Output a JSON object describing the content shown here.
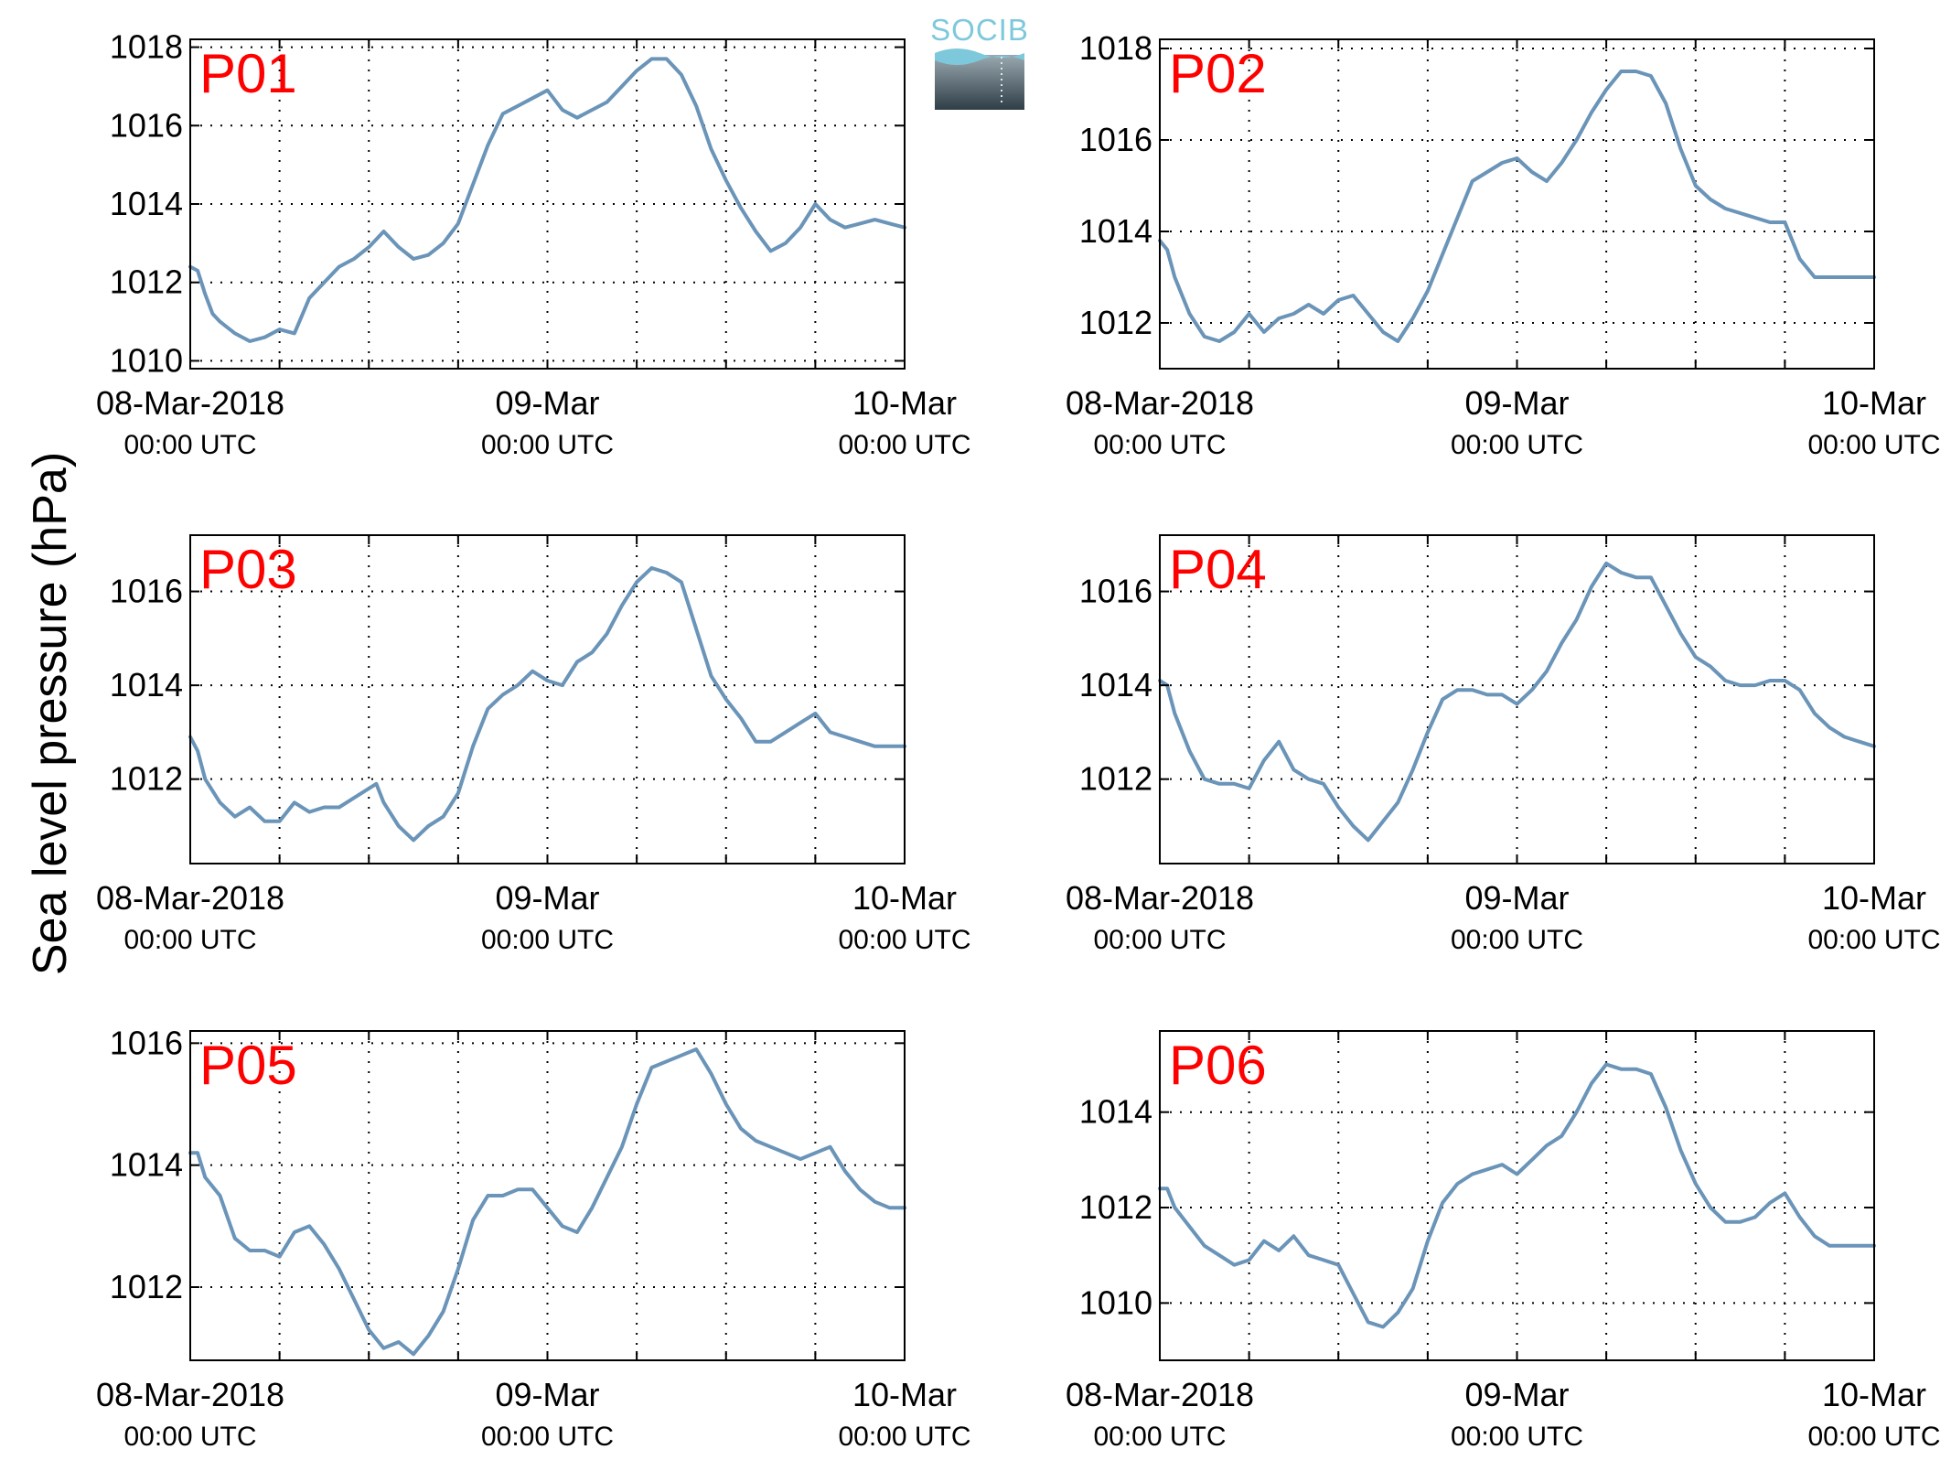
{
  "figure": {
    "ylabel": "Sea level pressure (hPa)",
    "logo_text": "SOCIB"
  },
  "colors": {
    "series": "#6a94b8",
    "panel_label": "#ff0000",
    "logo_text": "#7ec8dc"
  },
  "chart_data": [
    {
      "type": "line",
      "panel_label": "P01",
      "ylabel": "Sea level pressure (hPa)",
      "xlim": [
        0,
        48
      ],
      "ylim": [
        1009.8,
        1018.2
      ],
      "yticks": [
        1010,
        1012,
        1014,
        1016,
        1018
      ],
      "xticks": [
        0,
        6,
        12,
        18,
        24,
        30,
        36,
        42,
        48
      ],
      "xtick_labels": [
        {
          "pos": 0,
          "date": "08-Mar-2018",
          "time": "00:00 UTC"
        },
        {
          "pos": 24,
          "date": "09-Mar",
          "time": "00:00 UTC"
        },
        {
          "pos": 48,
          "date": "10-Mar",
          "time": "00:00 UTC"
        }
      ],
      "grid": true,
      "x_unit": "hours since 08-Mar-2018 00:00 UTC",
      "series": [
        {
          "x": [
            0,
            0.5,
            1,
            1.5,
            2,
            3,
            4,
            5,
            6,
            7,
            8,
            9,
            10,
            11,
            12,
            12.5,
            13,
            14,
            15,
            16,
            17,
            18,
            19,
            20,
            21,
            22,
            23,
            24,
            25,
            26,
            27,
            28,
            29,
            30,
            31,
            32,
            33,
            34,
            35,
            36,
            37,
            38,
            39,
            40,
            41,
            42,
            43,
            44,
            45,
            46,
            47,
            48
          ],
          "y": [
            1012.4,
            1012.3,
            1011.7,
            1011.2,
            1011.0,
            1010.7,
            1010.5,
            1010.6,
            1010.8,
            1010.7,
            1011.6,
            1012.0,
            1012.4,
            1012.6,
            1012.9,
            1013.1,
            1013.3,
            1012.9,
            1012.6,
            1012.7,
            1013.0,
            1013.5,
            1014.5,
            1015.5,
            1016.3,
            1016.5,
            1016.7,
            1016.9,
            1016.4,
            1016.2,
            1016.4,
            1016.6,
            1017.0,
            1017.4,
            1017.7,
            1017.7,
            1017.3,
            1016.5,
            1015.4,
            1014.6,
            1013.9,
            1013.3,
            1012.8,
            1013.0,
            1013.4,
            1014.0,
            1013.6,
            1013.4,
            1013.5,
            1013.6,
            1013.5,
            1013.4
          ]
        }
      ]
    },
    {
      "type": "line",
      "panel_label": "P02",
      "ylabel": "Sea level pressure (hPa)",
      "xlim": [
        0,
        48
      ],
      "ylim": [
        1011.0,
        1018.2
      ],
      "yticks": [
        1012,
        1014,
        1016,
        1018
      ],
      "xticks": [
        0,
        6,
        12,
        18,
        24,
        30,
        36,
        42,
        48
      ],
      "xtick_labels": [
        {
          "pos": 0,
          "date": "08-Mar-2018",
          "time": "00:00 UTC"
        },
        {
          "pos": 24,
          "date": "09-Mar",
          "time": "00:00 UTC"
        },
        {
          "pos": 48,
          "date": "10-Mar",
          "time": "00:00 UTC"
        }
      ],
      "grid": true,
      "x_unit": "hours since 08-Mar-2018 00:00 UTC",
      "series": [
        {
          "x": [
            0,
            0.5,
            1,
            2,
            3,
            4,
            5,
            6,
            7,
            8,
            9,
            10,
            11,
            12,
            13,
            14,
            15,
            16,
            17,
            18,
            19,
            20,
            21,
            22,
            23,
            24,
            25,
            26,
            27,
            28,
            29,
            30,
            31,
            32,
            33,
            34,
            35,
            36,
            37,
            38,
            39,
            40,
            41,
            42,
            43,
            44,
            45,
            46,
            47,
            48
          ],
          "y": [
            1013.8,
            1013.6,
            1013.0,
            1012.2,
            1011.7,
            1011.6,
            1011.8,
            1012.2,
            1011.8,
            1012.1,
            1012.2,
            1012.4,
            1012.2,
            1012.5,
            1012.6,
            1012.2,
            1011.8,
            1011.6,
            1012.1,
            1012.7,
            1013.5,
            1014.3,
            1015.1,
            1015.3,
            1015.5,
            1015.6,
            1015.3,
            1015.1,
            1015.5,
            1016.0,
            1016.6,
            1017.1,
            1017.5,
            1017.5,
            1017.4,
            1016.8,
            1015.8,
            1015.0,
            1014.7,
            1014.5,
            1014.4,
            1014.3,
            1014.2,
            1014.2,
            1013.4,
            1013.0,
            1013.0,
            1013.0,
            1013.0,
            1013.0
          ]
        }
      ]
    },
    {
      "type": "line",
      "panel_label": "P03",
      "ylabel": "Sea level pressure (hPa)",
      "xlim": [
        0,
        48
      ],
      "ylim": [
        1010.2,
        1017.2
      ],
      "yticks": [
        1012,
        1014,
        1016
      ],
      "xticks": [
        0,
        6,
        12,
        18,
        24,
        30,
        36,
        42,
        48
      ],
      "xtick_labels": [
        {
          "pos": 0,
          "date": "08-Mar-2018",
          "time": "00:00 UTC"
        },
        {
          "pos": 24,
          "date": "09-Mar",
          "time": "00:00 UTC"
        },
        {
          "pos": 48,
          "date": "10-Mar",
          "time": "00:00 UTC"
        }
      ],
      "grid": true,
      "x_unit": "hours since 08-Mar-2018 00:00 UTC",
      "series": [
        {
          "x": [
            0,
            0.5,
            1,
            2,
            3,
            4,
            5,
            6,
            7,
            8,
            9,
            10,
            11,
            12,
            12.5,
            13,
            14,
            15,
            16,
            17,
            18,
            19,
            20,
            21,
            22,
            23,
            24,
            25,
            26,
            27,
            28,
            29,
            30,
            31,
            32,
            33,
            34,
            35,
            36,
            37,
            38,
            39,
            40,
            41,
            42,
            43,
            44,
            45,
            46,
            47,
            48
          ],
          "y": [
            1012.9,
            1012.6,
            1012.0,
            1011.5,
            1011.2,
            1011.4,
            1011.1,
            1011.1,
            1011.5,
            1011.3,
            1011.4,
            1011.4,
            1011.6,
            1011.8,
            1011.9,
            1011.5,
            1011.0,
            1010.7,
            1011.0,
            1011.2,
            1011.7,
            1012.7,
            1013.5,
            1013.8,
            1014.0,
            1014.3,
            1014.1,
            1014.0,
            1014.5,
            1014.7,
            1015.1,
            1015.7,
            1016.2,
            1016.5,
            1016.4,
            1016.2,
            1015.2,
            1014.2,
            1013.7,
            1013.3,
            1012.8,
            1012.8,
            1013.0,
            1013.2,
            1013.4,
            1013.0,
            1012.9,
            1012.8,
            1012.7,
            1012.7,
            1012.7
          ]
        }
      ]
    },
    {
      "type": "line",
      "panel_label": "P04",
      "ylabel": "Sea level pressure (hPa)",
      "xlim": [
        0,
        48
      ],
      "ylim": [
        1010.2,
        1017.2
      ],
      "yticks": [
        1012,
        1014,
        1016
      ],
      "xticks": [
        0,
        6,
        12,
        18,
        24,
        30,
        36,
        42,
        48
      ],
      "xtick_labels": [
        {
          "pos": 0,
          "date": "08-Mar-2018",
          "time": "00:00 UTC"
        },
        {
          "pos": 24,
          "date": "09-Mar",
          "time": "00:00 UTC"
        },
        {
          "pos": 48,
          "date": "10-Mar",
          "time": "00:00 UTC"
        }
      ],
      "grid": true,
      "x_unit": "hours since 08-Mar-2018 00:00 UTC",
      "series": [
        {
          "x": [
            0,
            0.5,
            1,
            2,
            3,
            4,
            5,
            6,
            7,
            8,
            9,
            10,
            11,
            12,
            13,
            14,
            15,
            16,
            17,
            18,
            19,
            20,
            21,
            22,
            23,
            24,
            25,
            26,
            27,
            28,
            29,
            30,
            31,
            32,
            33,
            34,
            35,
            36,
            37,
            38,
            39,
            40,
            41,
            42,
            43,
            44,
            45,
            46,
            47,
            48
          ],
          "y": [
            1014.1,
            1014.0,
            1013.4,
            1012.6,
            1012.0,
            1011.9,
            1011.9,
            1011.8,
            1012.4,
            1012.8,
            1012.2,
            1012.0,
            1011.9,
            1011.4,
            1011.0,
            1010.7,
            1011.1,
            1011.5,
            1012.2,
            1013.0,
            1013.7,
            1013.9,
            1013.9,
            1013.8,
            1013.8,
            1013.6,
            1013.9,
            1014.3,
            1014.9,
            1015.4,
            1016.1,
            1016.6,
            1016.4,
            1016.3,
            1016.3,
            1015.7,
            1015.1,
            1014.6,
            1014.4,
            1014.1,
            1014.0,
            1014.0,
            1014.1,
            1014.1,
            1013.9,
            1013.4,
            1013.1,
            1012.9,
            1012.8,
            1012.7
          ]
        }
      ]
    },
    {
      "type": "line",
      "panel_label": "P05",
      "ylabel": "Sea level pressure (hPa)",
      "xlim": [
        0,
        48
      ],
      "ylim": [
        1010.8,
        1016.2
      ],
      "yticks": [
        1012,
        1014,
        1016
      ],
      "xticks": [
        0,
        6,
        12,
        18,
        24,
        30,
        36,
        42,
        48
      ],
      "xtick_labels": [
        {
          "pos": 0,
          "date": "08-Mar-2018",
          "time": "00:00 UTC"
        },
        {
          "pos": 24,
          "date": "09-Mar",
          "time": "00:00 UTC"
        },
        {
          "pos": 48,
          "date": "10-Mar",
          "time": "00:00 UTC"
        }
      ],
      "grid": true,
      "x_unit": "hours since 08-Mar-2018 00:00 UTC",
      "series": [
        {
          "x": [
            0,
            0.5,
            1,
            2,
            3,
            4,
            5,
            6,
            7,
            8,
            9,
            10,
            11,
            12,
            13,
            14,
            15,
            16,
            17,
            18,
            19,
            20,
            21,
            22,
            23,
            24,
            25,
            26,
            27,
            28,
            29,
            30,
            31,
            32,
            33,
            34,
            35,
            36,
            37,
            38,
            39,
            40,
            41,
            42,
            43,
            44,
            45,
            46,
            47,
            48
          ],
          "y": [
            1014.2,
            1014.2,
            1013.8,
            1013.5,
            1012.8,
            1012.6,
            1012.6,
            1012.5,
            1012.9,
            1013.0,
            1012.7,
            1012.3,
            1011.8,
            1011.3,
            1011.0,
            1011.1,
            1010.9,
            1011.2,
            1011.6,
            1012.3,
            1013.1,
            1013.5,
            1013.5,
            1013.6,
            1013.6,
            1013.3,
            1013.0,
            1012.9,
            1013.3,
            1013.8,
            1014.3,
            1015.0,
            1015.6,
            1015.7,
            1015.8,
            1015.9,
            1015.5,
            1015.0,
            1014.6,
            1014.4,
            1014.3,
            1014.2,
            1014.1,
            1014.2,
            1014.3,
            1013.9,
            1013.6,
            1013.4,
            1013.3,
            1013.3
          ]
        }
      ]
    },
    {
      "type": "line",
      "panel_label": "P06",
      "ylabel": "Sea level pressure (hPa)",
      "xlim": [
        0,
        48
      ],
      "ylim": [
        1008.8,
        1015.7
      ],
      "yticks": [
        1010,
        1012,
        1014
      ],
      "xticks": [
        0,
        6,
        12,
        18,
        24,
        30,
        36,
        42,
        48
      ],
      "xtick_labels": [
        {
          "pos": 0,
          "date": "08-Mar-2018",
          "time": "00:00 UTC"
        },
        {
          "pos": 24,
          "date": "09-Mar",
          "time": "00:00 UTC"
        },
        {
          "pos": 48,
          "date": "10-Mar",
          "time": "00:00 UTC"
        }
      ],
      "grid": true,
      "x_unit": "hours since 08-Mar-2018 00:00 UTC",
      "series": [
        {
          "x": [
            0,
            0.5,
            1,
            2,
            3,
            4,
            5,
            6,
            7,
            8,
            9,
            10,
            11,
            12,
            13,
            14,
            15,
            16,
            17,
            18,
            19,
            20,
            21,
            22,
            23,
            24,
            25,
            26,
            27,
            28,
            29,
            30,
            31,
            32,
            33,
            34,
            35,
            36,
            37,
            38,
            39,
            40,
            41,
            42,
            43,
            44,
            45,
            46,
            47,
            48
          ],
          "y": [
            1012.4,
            1012.4,
            1012.0,
            1011.6,
            1011.2,
            1011.0,
            1010.8,
            1010.9,
            1011.3,
            1011.1,
            1011.4,
            1011.0,
            1010.9,
            1010.8,
            1010.2,
            1009.6,
            1009.5,
            1009.8,
            1010.3,
            1011.3,
            1012.1,
            1012.5,
            1012.7,
            1012.8,
            1012.9,
            1012.7,
            1013.0,
            1013.3,
            1013.5,
            1014.0,
            1014.6,
            1015.0,
            1014.9,
            1014.9,
            1014.8,
            1014.1,
            1013.2,
            1012.5,
            1012.0,
            1011.7,
            1011.7,
            1011.8,
            1012.1,
            1012.3,
            1011.8,
            1011.4,
            1011.2,
            1011.2,
            1011.2,
            1011.2
          ]
        }
      ]
    }
  ]
}
